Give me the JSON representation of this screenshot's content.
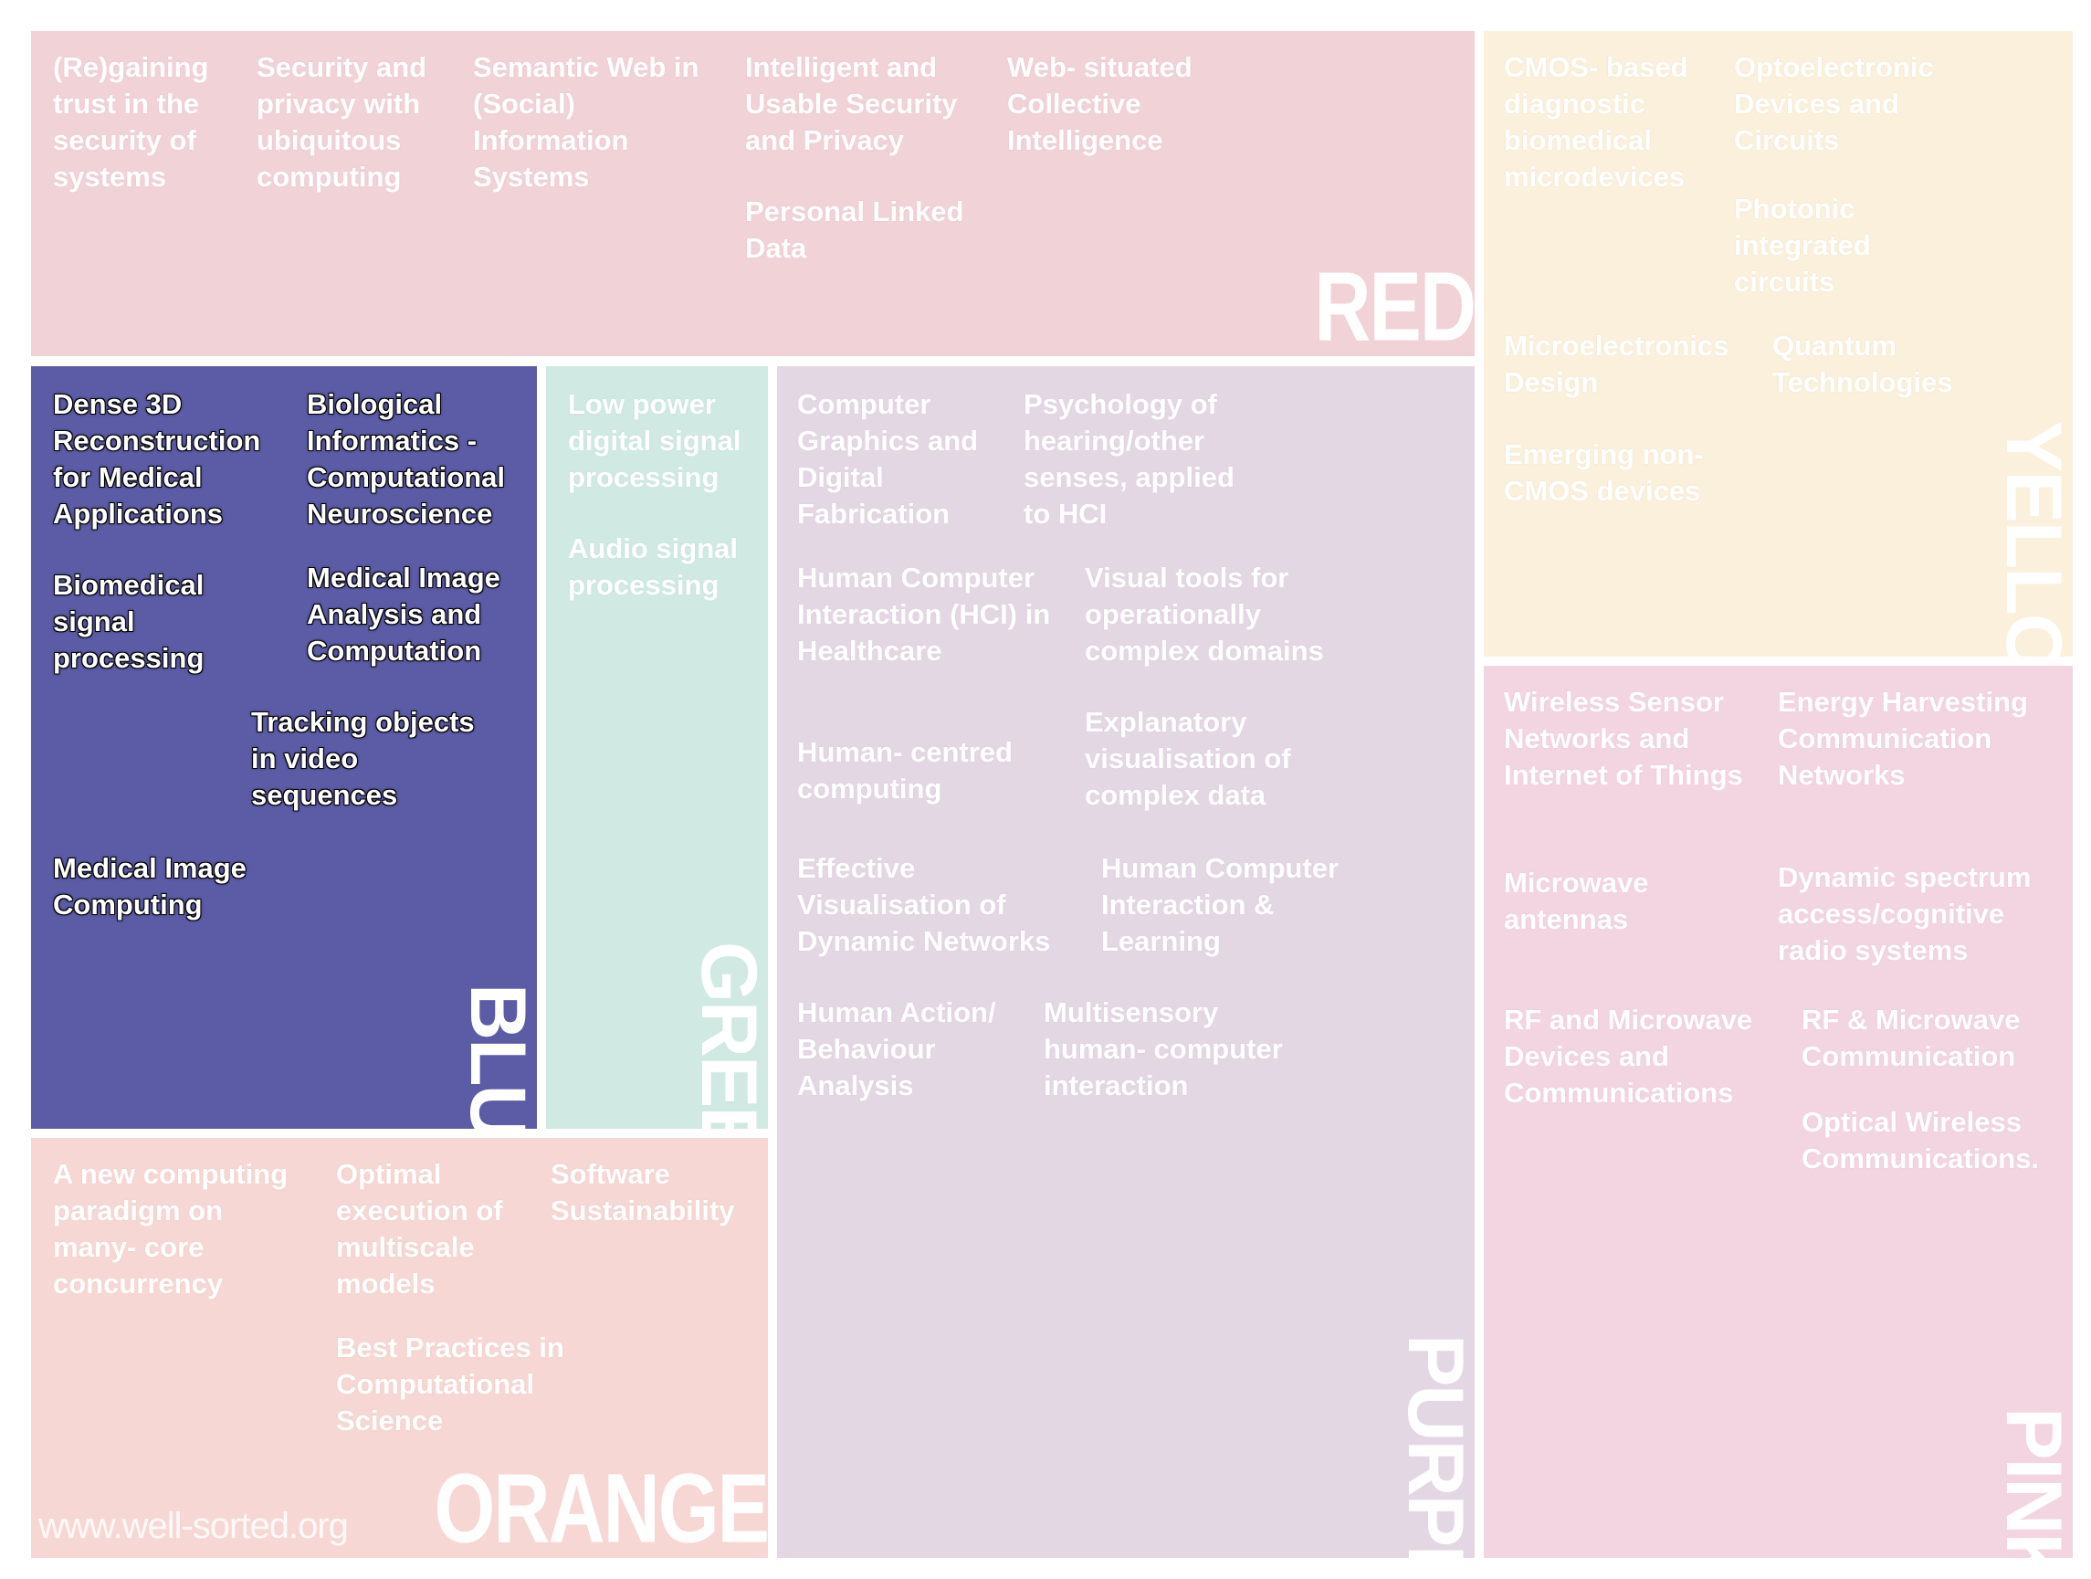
{
  "regions": {
    "red": {
      "label": "RED",
      "topics": [
        "(Re)gaining trust in the security of systems",
        "Security and privacy with ubiquitous computing",
        "Semantic Web in (Social) Information Systems",
        "Intelligent and Usable Security and Privacy",
        "Personal Linked Data",
        "Web- situated Collective Intelligence"
      ]
    },
    "yellow": {
      "label": "YELLOW",
      "topics": [
        "CMOS- based diagnostic biomedical microdevices",
        "Optoelectronic Devices and Circuits",
        "Photonic integrated circuits",
        "Microelectronics Design",
        "Quantum Technologies",
        "Emerging non- CMOS devices"
      ]
    },
    "blue": {
      "label": "BLUE",
      "topics": [
        "Dense 3D Reconstruction for Medical Applications",
        "Biological Informatics - Computational Neuroscience",
        "Biomedical signal processing",
        "Medical Image Analysis and Computation",
        "Tracking objects in video sequences",
        "Medical Image Computing"
      ]
    },
    "green": {
      "label": "GREEN",
      "topics": [
        "Low power digital signal processing",
        "Audio signal processing"
      ]
    },
    "purple": {
      "label": "PURPLE",
      "topics": [
        "Computer Graphics and Digital Fabrication",
        "Psychology of hearing/other senses, applied to HCI",
        "Human Computer Interaction (HCI) in Healthcare",
        "Visual tools for operationally complex domains",
        "Human- centred computing",
        "Explanatory visualisation of complex data",
        "Effective Visualisation of Dynamic Networks",
        "Human Computer Interaction & Learning",
        "Human Action/ Behaviour Analysis",
        "Multisensory human- computer interaction"
      ]
    },
    "pink": {
      "label": "PINK",
      "topics": [
        "Wireless Sensor Networks and Internet of Things",
        "Energy Harvesting Communication Networks",
        "Microwave antennas",
        "Dynamic spectrum access/cognitive radio systems",
        "RF and Microwave Devices and Communications",
        "RF & Microwave Communication",
        "Optical Wireless Communications."
      ]
    },
    "orange": {
      "label": "ORANGE",
      "topics": [
        "A new computing paradigm on many- core concurrency",
        "Optimal execution of multiscale models",
        "Software Sustainability",
        "Best Practices in Computational Science"
      ]
    }
  },
  "watermark": "www.well-sorted.org",
  "colors": {
    "red": "#f1d2d7",
    "yellow": "#faf0db",
    "blue": "#5b5ba6",
    "green": "#d0e9e3",
    "purple": "#e4d7e4",
    "pink": "#f2d5e1",
    "orange": "#f6d7d3"
  }
}
